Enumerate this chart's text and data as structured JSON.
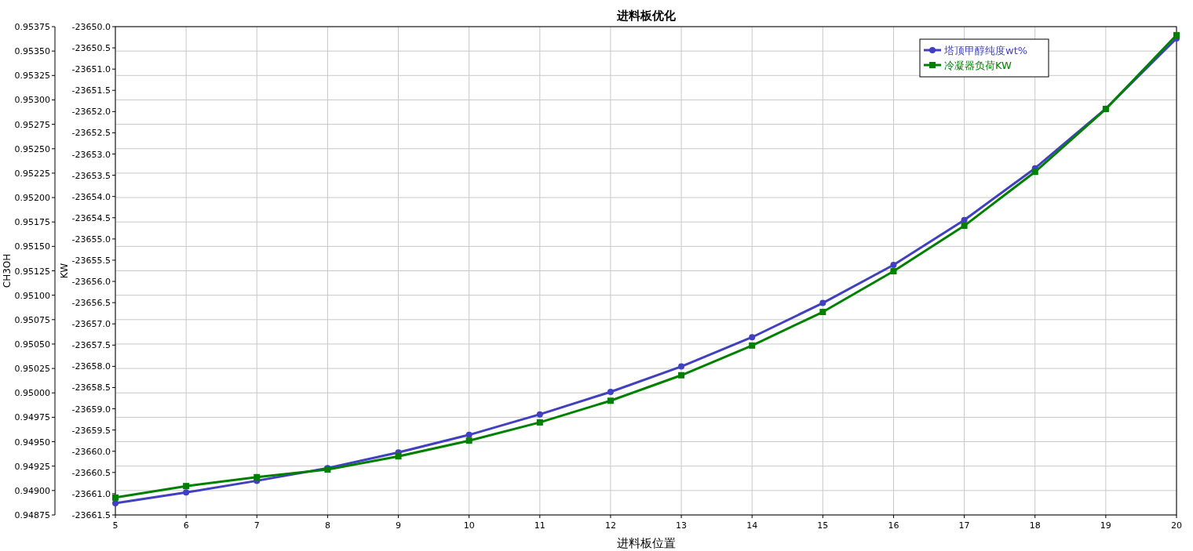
{
  "chart_data": {
    "type": "line",
    "title": "进料板优化",
    "xlabel": "进料板位置",
    "ylabel": "CH3OH",
    "y2label": "KW",
    "x": [
      5,
      6,
      7,
      8,
      9,
      10,
      11,
      12,
      13,
      14,
      15,
      16,
      17,
      18,
      19,
      20
    ],
    "series": [
      {
        "name": "塔顶甲醇纯度wt%",
        "color": "#4040c0",
        "marker": "circle",
        "values": [
          0.94887,
          0.94898,
          0.9491,
          0.94923,
          0.94939,
          0.94957,
          0.94978,
          0.95001,
          0.95027,
          0.95057,
          0.95092,
          0.95131,
          0.95177,
          0.9523,
          0.95291,
          0.95363
        ]
      },
      {
        "name": "冷凝器负荷KW",
        "color": "#008000",
        "marker": "square",
        "axis": "y2",
        "values": [
          -23661.09,
          -23660.82,
          -23660.61,
          -23660.43,
          -23660.12,
          -23659.75,
          -23659.32,
          -23658.81,
          -23658.21,
          -23657.51,
          -23656.72,
          -23655.76,
          -23654.69,
          -23653.42,
          -23651.94,
          -23650.2
        ]
      }
    ],
    "xlim": [
      5,
      20
    ],
    "xticks": [
      5,
      6,
      7,
      8,
      9,
      10,
      11,
      12,
      13,
      14,
      15,
      16,
      17,
      18,
      19,
      20
    ],
    "ylim": [
      0.94875,
      0.95375
    ],
    "yticks": [
      {
        "value": 0.94875,
        "label": "0.94875"
      },
      {
        "value": 0.949,
        "label": "0.94900"
      },
      {
        "value": 0.94925,
        "label": "0.94925"
      },
      {
        "value": 0.9495,
        "label": "0.94950"
      },
      {
        "value": 0.94975,
        "label": "0.94975"
      },
      {
        "value": 0.95,
        "label": "0.95000"
      },
      {
        "value": 0.95025,
        "label": "0.95025"
      },
      {
        "value": 0.9505,
        "label": "0.95050"
      },
      {
        "value": 0.95075,
        "label": "0.95075"
      },
      {
        "value": 0.951,
        "label": "0.95100"
      },
      {
        "value": 0.95125,
        "label": "0.95125"
      },
      {
        "value": 0.9515,
        "label": "0.95150"
      },
      {
        "value": 0.95175,
        "label": "0.95175"
      },
      {
        "value": 0.952,
        "label": "0.95200"
      },
      {
        "value": 0.95225,
        "label": "0.95225"
      },
      {
        "value": 0.9525,
        "label": "0.95250"
      },
      {
        "value": 0.95275,
        "label": "0.95275"
      },
      {
        "value": 0.953,
        "label": "0.95300"
      },
      {
        "value": 0.95325,
        "label": "0.95325"
      },
      {
        "value": 0.9535,
        "label": "0.95350"
      },
      {
        "value": 0.95375,
        "label": "0.95375"
      }
    ],
    "y2lim": [
      -23661.5,
      -23650.0
    ],
    "y2ticks": [
      {
        "value": -23661.5,
        "label": "-23661.5"
      },
      {
        "value": -23661,
        "label": "-23661.0"
      },
      {
        "value": -23660.5,
        "label": "-23660.5"
      },
      {
        "value": -23660,
        "label": "-23660.0"
      },
      {
        "value": -23659.5,
        "label": "-23659.5"
      },
      {
        "value": -23659,
        "label": "-23659.0"
      },
      {
        "value": -23658.5,
        "label": "-23658.5"
      },
      {
        "value": -23658,
        "label": "-23658.0"
      },
      {
        "value": -23657.5,
        "label": "-23657.5"
      },
      {
        "value": -23657,
        "label": "-23657.0"
      },
      {
        "value": -23656.5,
        "label": "-23656.5"
      },
      {
        "value": -23656,
        "label": "-23656.0"
      },
      {
        "value": -23655.5,
        "label": "-23655.5"
      },
      {
        "value": -23655,
        "label": "-23655.0"
      },
      {
        "value": -23654.5,
        "label": "-23654.5"
      },
      {
        "value": -23654,
        "label": "-23654.0"
      },
      {
        "value": -23653.5,
        "label": "-23653.5"
      },
      {
        "value": -23653,
        "label": "-23653.0"
      },
      {
        "value": -23652.5,
        "label": "-23652.5"
      },
      {
        "value": -23652,
        "label": "-23652.0"
      },
      {
        "value": -23651.5,
        "label": "-23651.5"
      },
      {
        "value": -23651,
        "label": "-23651.0"
      },
      {
        "value": -23650.5,
        "label": "-23650.5"
      },
      {
        "value": -23650,
        "label": "-23650.0"
      }
    ],
    "grid": true,
    "legend": "top right",
    "line_style": "solid"
  }
}
